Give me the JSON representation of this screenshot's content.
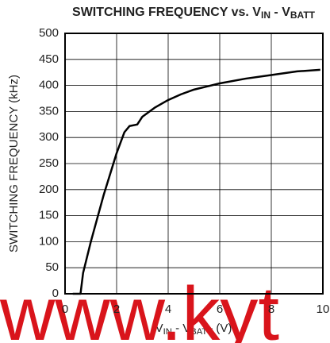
{
  "chart_data": {
    "type": "line",
    "title": [
      {
        "text": "SWITCHING FREQUENCY vs. V",
        "sub": false
      },
      {
        "text": "IN",
        "sub": true
      },
      {
        "text": " - V",
        "sub": false
      },
      {
        "text": "BATT",
        "sub": true
      }
    ],
    "x_label": [
      {
        "text": "V",
        "sub": false
      },
      {
        "text": "IN",
        "sub": true
      },
      {
        "text": " - V",
        "sub": false
      },
      {
        "text": "BATT",
        "sub": true
      },
      {
        "text": " (V)",
        "sub": false
      }
    ],
    "y_label": "SWITCHING FREQUENCY (kHz)",
    "watermark": "www.kyt",
    "x": [
      0.3,
      0.6,
      0.7,
      1,
      1.5,
      2,
      2.3,
      2.5,
      2.8,
      3,
      3.5,
      4,
      4.5,
      5,
      5.5,
      6,
      7,
      8,
      9,
      9.9
    ],
    "series": [
      {
        "name": "Switching frequency",
        "color": "#000000",
        "values": [
          0,
          0,
          40,
          100,
          190,
          270,
          310,
          322,
          325,
          340,
          358,
          372,
          383,
          392,
          398,
          404,
          413,
          420,
          427,
          430
        ]
      }
    ],
    "xlim": [
      0,
      10
    ],
    "xticks": [
      0,
      2,
      4,
      6,
      8,
      10
    ],
    "ylim": [
      0,
      500
    ],
    "yticks": [
      0,
      50,
      100,
      150,
      200,
      250,
      300,
      350,
      400,
      450,
      500
    ],
    "grid": true
  }
}
